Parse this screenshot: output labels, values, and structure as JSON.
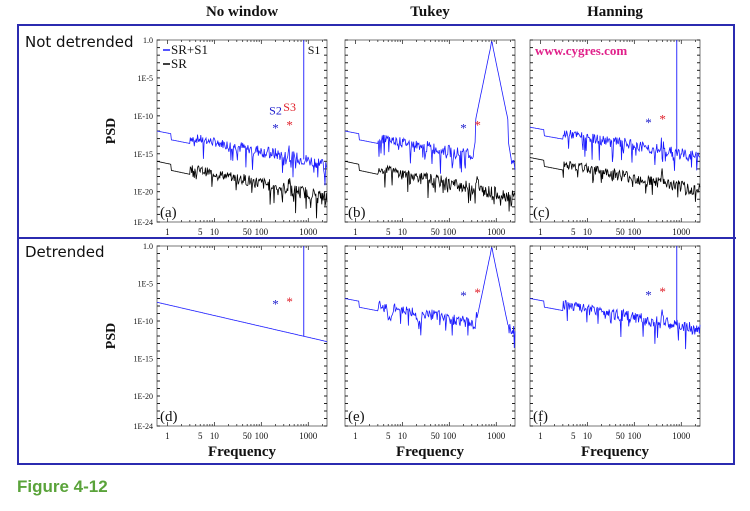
{
  "figure": {
    "caption": "Figure 4-12",
    "column_titles": [
      "No window",
      "Tukey",
      "Hanning"
    ],
    "row_titles": [
      "Not detrended",
      "Detrended"
    ],
    "watermark": "www.cygres.com",
    "colors": {
      "frame": "#2b2bb0",
      "sr_s1": "#1a1aff",
      "sr": "#000000",
      "s2_marker": "#1a1acc",
      "s3_marker": "#e0202a",
      "watermark": "#e0208a",
      "caption": "#5aa33a"
    }
  },
  "chart_data": [
    {
      "id": "a",
      "panel_label": "(a)",
      "type": "line",
      "row": "Not detrended",
      "window": "No window",
      "xlabel": "",
      "ylabel": "PSD",
      "xscale": "log",
      "yscale": "log",
      "xlim": [
        0.6,
        2500
      ],
      "ylim": [
        1e-24,
        1.0
      ],
      "xticks": [
        "1",
        "5",
        "10",
        "50",
        "100",
        "1000"
      ],
      "yticks": [
        "1.0",
        "1E-5",
        "1E-10",
        "1E-15",
        "1E-20",
        "1E-24"
      ],
      "legend": [
        "SR+S1",
        "SR"
      ],
      "legend_position": "top-left",
      "annotations": [
        "S1",
        "S2",
        "S3",
        "*",
        "*"
      ],
      "series": [
        {
          "name": "SR+S1",
          "color": "#1a1aff",
          "start_log10": -12,
          "slope": -1.2,
          "peak_s1": true,
          "s1_style": "line"
        },
        {
          "name": "SR",
          "color": "#000000",
          "start_log10": -16,
          "slope": -1.3
        }
      ],
      "markers": {
        "s2_freq": 200,
        "s3_freq": 400,
        "s1_freq": 800
      }
    },
    {
      "id": "b",
      "panel_label": "(b)",
      "type": "line",
      "row": "Not detrended",
      "window": "Tukey",
      "xlabel": "",
      "ylabel": "",
      "xscale": "log",
      "yscale": "log",
      "xlim": [
        0.6,
        2500
      ],
      "ylim": [
        1e-24,
        1.0
      ],
      "xticks": [
        "1",
        "5",
        "10",
        "50",
        "100",
        "1000"
      ],
      "series": [
        {
          "name": "SR+S1",
          "color": "#1a1aff",
          "start_log10": -12,
          "slope": -1.2,
          "peak_s1": true,
          "s1_style": "lorentz"
        },
        {
          "name": "SR",
          "color": "#000000",
          "start_log10": -16,
          "slope": -1.3
        }
      ],
      "markers": {
        "s2_freq": 200,
        "s3_freq": 400,
        "s1_freq": 800
      }
    },
    {
      "id": "c",
      "panel_label": "(c)",
      "type": "line",
      "row": "Not detrended",
      "window": "Hanning",
      "xlabel": "",
      "ylabel": "",
      "xscale": "log",
      "yscale": "log",
      "xlim": [
        0.6,
        2500
      ],
      "ylim": [
        1e-24,
        1.0
      ],
      "xticks": [
        "1",
        "5",
        "10",
        "50",
        "100",
        "1000"
      ],
      "series": [
        {
          "name": "SR+S1",
          "color": "#1a1aff",
          "start_log10": -11.5,
          "slope": -1.1,
          "peak_s1": true,
          "s1_style": "line"
        },
        {
          "name": "SR",
          "color": "#000000",
          "start_log10": -15.5,
          "slope": -1.2
        }
      ],
      "markers": {
        "s2_freq": 200,
        "s3_freq": 400,
        "s1_freq": 800
      }
    },
    {
      "id": "d",
      "panel_label": "(d)",
      "type": "line",
      "row": "Detrended",
      "window": "No window",
      "xlabel": "Frequency",
      "ylabel": "PSD",
      "xscale": "log",
      "yscale": "log",
      "xlim": [
        0.6,
        2500
      ],
      "ylim": [
        1e-24,
        1.0
      ],
      "xticks": [
        "1",
        "5",
        "10",
        "50",
        "100",
        "1000"
      ],
      "yticks": [
        "1.0",
        "1E-5",
        "1E-10",
        "1E-15",
        "1E-20",
        "1E-24"
      ],
      "series": [
        {
          "name": "SR+S1",
          "color": "#1a1aff",
          "start_log10": -7.5,
          "slope": -1.45,
          "smooth": true,
          "peak_s1": true,
          "s1_style": "line"
        }
      ],
      "markers": {
        "s2_freq": 200,
        "s3_freq": 400,
        "s1_freq": 800
      }
    },
    {
      "id": "e",
      "panel_label": "(e)",
      "type": "line",
      "row": "Detrended",
      "window": "Tukey",
      "xlabel": "Frequency",
      "ylabel": "",
      "xscale": "log",
      "yscale": "log",
      "xlim": [
        0.6,
        2500
      ],
      "ylim": [
        1e-24,
        1.0
      ],
      "xticks": [
        "1",
        "5",
        "10",
        "50",
        "100",
        "1000"
      ],
      "series": [
        {
          "name": "SR+S1",
          "color": "#1a1aff",
          "start_log10": -7,
          "slope": -1.2,
          "dips": [
            5.5,
            22
          ],
          "peak_s1": true,
          "s1_style": "lorentz"
        }
      ],
      "markers": {
        "s2_freq": 200,
        "s3_freq": 400,
        "s1_freq": 800
      }
    },
    {
      "id": "f",
      "panel_label": "(f)",
      "type": "line",
      "row": "Detrended",
      "window": "Hanning",
      "xlabel": "Frequency",
      "ylabel": "",
      "xscale": "log",
      "yscale": "log",
      "xlim": [
        0.6,
        2500
      ],
      "ylim": [
        1e-24,
        1.0
      ],
      "xticks": [
        "1",
        "5",
        "10",
        "50",
        "100",
        "1000"
      ],
      "series": [
        {
          "name": "SR+S1",
          "color": "#1a1aff",
          "start_log10": -7,
          "slope": -1.15,
          "peak_s1": true,
          "s1_style": "line"
        }
      ],
      "markers": {
        "s2_freq": 200,
        "s3_freq": 400,
        "s1_freq": 800
      }
    }
  ]
}
